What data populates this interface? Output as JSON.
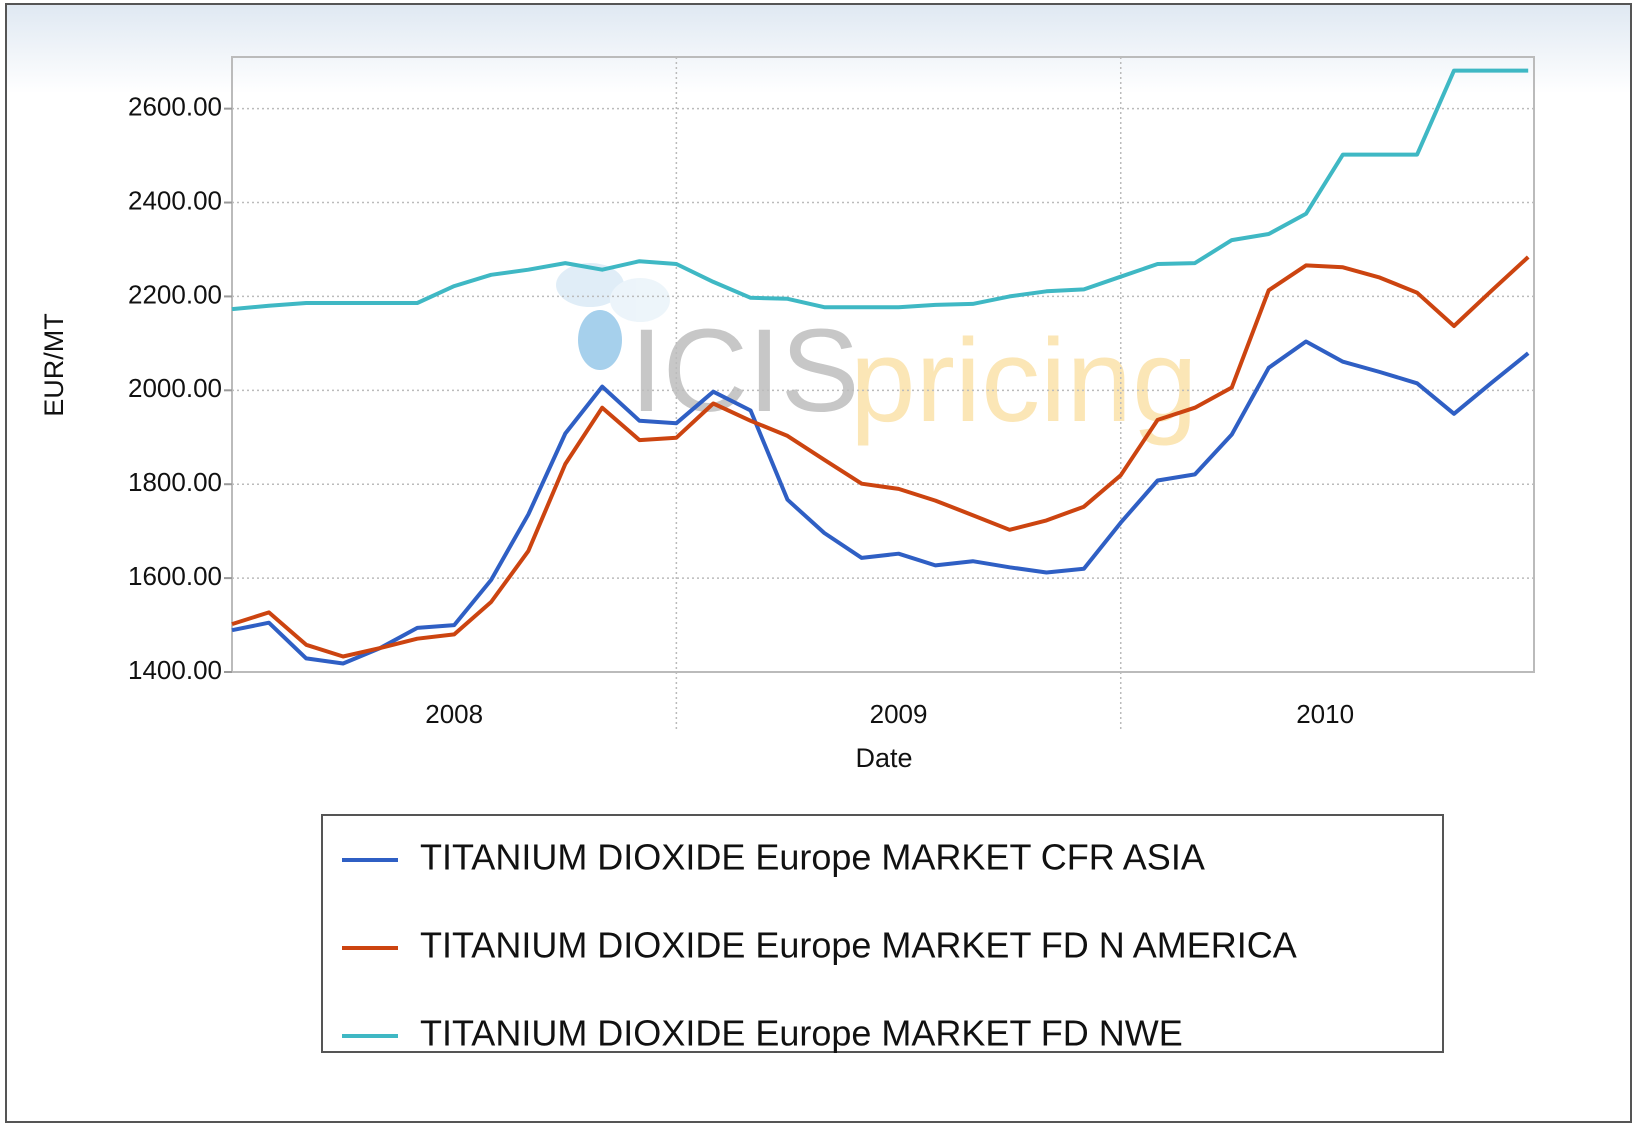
{
  "chart_data": {
    "type": "line",
    "x_label": "Date",
    "y_label": "EUR/MT",
    "watermark": [
      "ICIS",
      "pricing"
    ],
    "x": [
      2008,
      2008.083,
      2008.167,
      2008.25,
      2008.333,
      2008.417,
      2008.5,
      2008.583,
      2008.667,
      2008.75,
      2008.833,
      2008.917,
      2009,
      2009.083,
      2009.167,
      2009.25,
      2009.333,
      2009.417,
      2009.5,
      2009.583,
      2009.667,
      2009.75,
      2009.833,
      2009.917,
      2010,
      2010.083,
      2010.167,
      2010.25,
      2010.333,
      2010.417,
      2010.5,
      2010.583,
      2010.667,
      2010.75,
      2010.833,
      2010.917
    ],
    "xlim": [
      2008,
      2010.93
    ],
    "xticks": [
      {
        "value": 2008.5,
        "label": "2008"
      },
      {
        "value": 2009.5,
        "label": "2009"
      },
      {
        "value": 2010.46,
        "label": "2010"
      }
    ],
    "xgrid": [
      2009,
      2010
    ],
    "ylim": [
      1400,
      2710
    ],
    "yticks": [
      {
        "value": 1400,
        "label": "1400.00"
      },
      {
        "value": 1600,
        "label": "1600.00"
      },
      {
        "value": 1800,
        "label": "1800.00"
      },
      {
        "value": 2000,
        "label": "2000.00"
      },
      {
        "value": 2200,
        "label": "2200.00"
      },
      {
        "value": 2400,
        "label": "2400.00"
      },
      {
        "value": 2600,
        "label": "2600.00"
      }
    ],
    "grid": true,
    "series": [
      {
        "name": "TITANIUM DIOXIDE Europe MARKET CFR ASIA",
        "color": "#2f5fc4",
        "values": [
          1489,
          1505,
          1429,
          1418,
          1451,
          1494,
          1500,
          1596,
          1736,
          1908,
          2008,
          1935,
          1930,
          1997,
          1957,
          1767,
          1696,
          1643,
          1652,
          1627,
          1636,
          1623,
          1612,
          1620,
          1718,
          1808,
          1821,
          1906,
          2048,
          2104,
          2061,
          2039,
          2015,
          1950,
          2015,
          2079
        ]
      },
      {
        "name": "TITANIUM DIOXIDE Europe MARKET FD N AMERICA",
        "color": "#cc4410",
        "values": [
          1502,
          1527,
          1458,
          1433,
          1451,
          1471,
          1480,
          1549,
          1658,
          1843,
          1963,
          1894,
          1899,
          1972,
          1935,
          1903,
          1852,
          1801,
          1790,
          1765,
          1734,
          1703,
          1723,
          1752,
          1819,
          1937,
          1963,
          2006,
          2213,
          2266,
          2262,
          2240,
          2208,
          2137,
          2211,
          2284
        ]
      },
      {
        "name": "TITANIUM DIOXIDE Europe MARKET FD NWE",
        "color": "#3fb8c4",
        "values": [
          2173,
          2180,
          2186,
          2186,
          2186,
          2186,
          2222,
          2246,
          2257,
          2271,
          2257,
          2275,
          2269,
          2231,
          2197,
          2195,
          2177,
          2177,
          2177,
          2182,
          2184,
          2200,
          2211,
          2215,
          2242,
          2269,
          2271,
          2320,
          2333,
          2376,
          2502,
          2502,
          2502,
          2681,
          2681,
          2681
        ]
      }
    ]
  }
}
